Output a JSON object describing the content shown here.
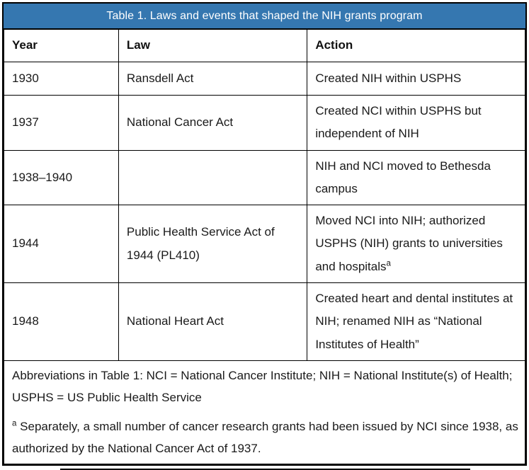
{
  "table": {
    "title": "Table 1. Laws and events that shaped the NIH grants program",
    "columns": {
      "year": "Year",
      "law": "Law",
      "action": "Action"
    },
    "rows": [
      {
        "year": "1930",
        "law": "Ransdell Act",
        "action": "Created NIH within USPHS"
      },
      {
        "year": "1937",
        "law": "National Cancer Act",
        "action": "Created NCI within USPHS but independent of NIH"
      },
      {
        "year": "1938–1940",
        "law": "",
        "action": "NIH and NCI moved to Bethesda campus"
      },
      {
        "year": "1944",
        "law": "Public Health Service Act of 1944 (PL410)",
        "action": "Moved NCI into NIH; authorized USPHS (NIH) grants to universities and hospitals",
        "action_footnote_marker": "a"
      },
      {
        "year": "1948",
        "law": "National Heart Act",
        "action": "Created heart and dental institutes at NIH; renamed NIH as “National Institutes of Health”"
      }
    ],
    "footer": {
      "abbreviations": "Abbreviations in Table 1: NCI = National Cancer Institute; NIH = National Institute(s) of Health; USPHS = US Public Health Service",
      "footnote_marker": "a",
      "footnote_text": "Separately, a small number of cancer research grants had been issued by NCI since 1938, as authorized by the National Cancer Act of 1937."
    },
    "colors": {
      "title_bg": "#3577B0",
      "title_text": "#FFFFFF",
      "border": "#000000",
      "body_text": "#1A1A1A"
    }
  }
}
